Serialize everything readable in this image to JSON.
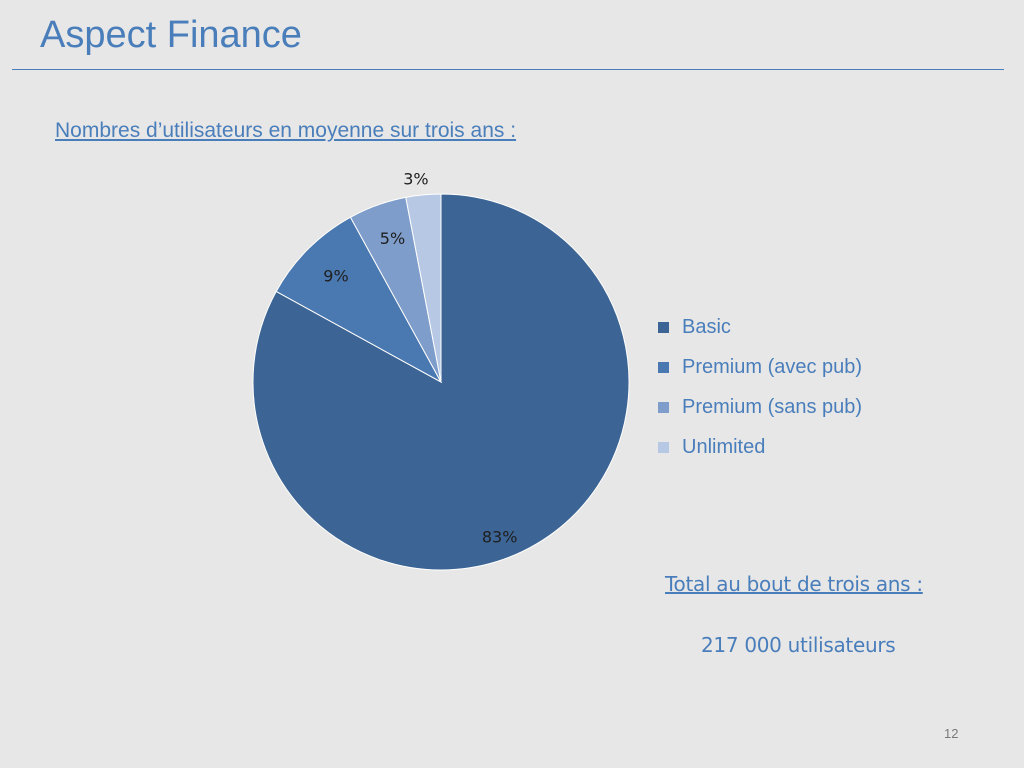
{
  "slide": {
    "title": "Aspect Finance",
    "page_number": "12"
  },
  "chart_heading": "Nombres d’utilisateurs en moyenne sur trois ans :",
  "chart_data": {
    "type": "pie",
    "title": "",
    "slices": [
      {
        "name": "Basic",
        "value": 83,
        "label": "83%",
        "color": "#3c6595"
      },
      {
        "name": "Premium (avec pub)",
        "value": 9,
        "label": "9%",
        "color": "#4a78b0"
      },
      {
        "name": "Premium (sans pub)",
        "value": 5,
        "label": "5%",
        "color": "#7e9dcb"
      },
      {
        "name": "Unlimited",
        "value": 3,
        "label": "3%",
        "color": "#b7c8e4"
      }
    ],
    "legend_position": "right"
  },
  "total": {
    "heading": "Total au bout de trois ans :",
    "value": "217 000 utilisateurs"
  }
}
